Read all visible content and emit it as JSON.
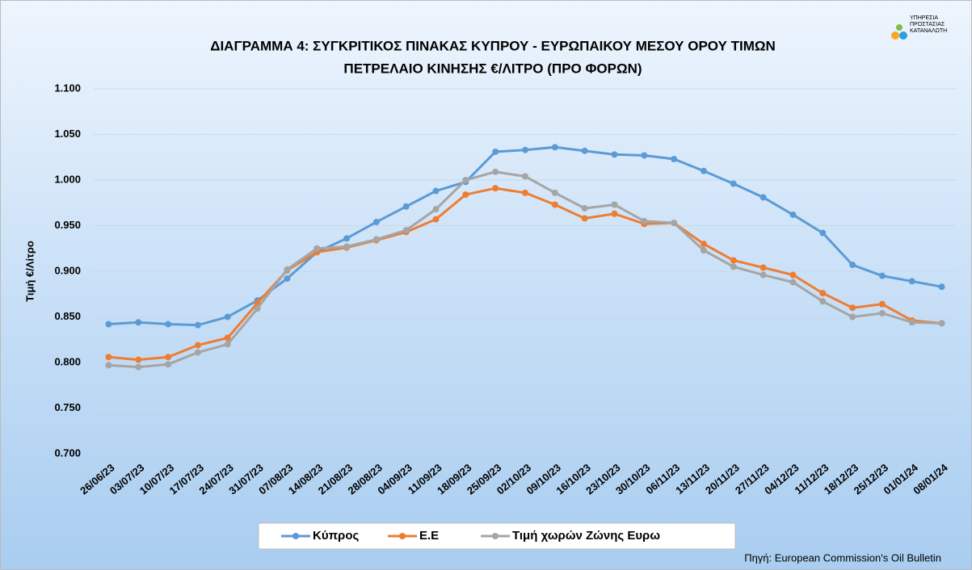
{
  "chart_data": {
    "type": "line",
    "title": [
      "ΔΙΑΓΡΑΜΜΑ 4: ΣΥΓΚΡΙΤΙΚΟΣ ΠΙΝΑΚΑΣ ΚΥΠΡΟΥ - ΕΥΡΩΠΑΙΚΟΥ ΜΕΣΟΥ ΟΡΟΥ ΤΙΜΩΝ",
      "ΠΕΤΡΕΛΑΙΟ ΚΙΝΗΣΗΣ €/ΛΙΤΡΟ (ΠΡΟ ΦΟΡΩΝ)"
    ],
    "y_label": "Τιμή €/Λίτρο",
    "source": "Πηγή: European Commission's Oil Bulletin",
    "logo": [
      "ΥΠΗΡΕΣΙΑ",
      "ΠΡΟΣΤΑΣΙΑΣ",
      "ΚΑΤΑΝΑΛΩΤΗ"
    ],
    "categories": [
      "26/06/23",
      "03/07/23",
      "10/07/23",
      "17/07/23",
      "24/07/23",
      "31/07/23",
      "07/08/23",
      "14/08/23",
      "21/08/23",
      "28/08/23",
      "04/09/23",
      "11/09/23",
      "18/09/23",
      "25/09/23",
      "02/10/23",
      "09/10/23",
      "16/10/23",
      "23/10/23",
      "30/10/23",
      "06/11/23",
      "13/11/23",
      "20/11/23",
      "27/11/23",
      "04/12/23",
      "11/12/23",
      "18/12/23",
      "25/12/23",
      "01/01/24",
      "08/01/24"
    ],
    "series": [
      {
        "name": "Κύπρος",
        "color": "#5b9bd5",
        "values": [
          0.842,
          0.844,
          0.842,
          0.841,
          0.85,
          0.868,
          0.892,
          0.921,
          0.936,
          0.954,
          0.971,
          0.988,
          0.998,
          1.031,
          1.033,
          1.036,
          1.032,
          1.028,
          1.027,
          1.023,
          1.01,
          0.996,
          0.981,
          0.962,
          0.942,
          0.907,
          0.895,
          0.889,
          0.883
        ]
      },
      {
        "name": "Ε.Ε",
        "color": "#ed7d31",
        "values": [
          0.806,
          0.803,
          0.806,
          0.819,
          0.827,
          0.865,
          0.901,
          0.921,
          0.926,
          0.934,
          0.943,
          0.957,
          0.984,
          0.991,
          0.986,
          0.973,
          0.958,
          0.963,
          0.952,
          0.953,
          0.93,
          0.912,
          0.904,
          0.896,
          0.876,
          0.86,
          0.864,
          0.846,
          0.843
        ]
      },
      {
        "name": "Τιμή χωρών Ζώνης Ευρω",
        "color": "#a5a5a5",
        "values": [
          0.797,
          0.795,
          0.798,
          0.811,
          0.82,
          0.859,
          0.902,
          0.925,
          0.927,
          0.935,
          0.945,
          0.968,
          1.0,
          1.009,
          1.004,
          0.986,
          0.969,
          0.973,
          0.955,
          0.953,
          0.923,
          0.905,
          0.896,
          0.888,
          0.867,
          0.85,
          0.854,
          0.844,
          0.843
        ]
      }
    ],
    "ylim": [
      0.7,
      1.1
    ],
    "yticks": [
      {
        "value": 0.7,
        "label": "0.700"
      },
      {
        "value": 0.75,
        "label": "0.750"
      },
      {
        "value": 0.8,
        "label": "0.800"
      },
      {
        "value": 0.85,
        "label": "0.850"
      },
      {
        "value": 0.9,
        "label": "0.900"
      },
      {
        "value": 0.95,
        "label": "0.950"
      },
      {
        "value": 1.0,
        "label": "1.000"
      },
      {
        "value": 1.05,
        "label": "1.050"
      },
      {
        "value": 1.1,
        "label": "1.100"
      }
    ],
    "grid": true,
    "legend": "bottom"
  }
}
